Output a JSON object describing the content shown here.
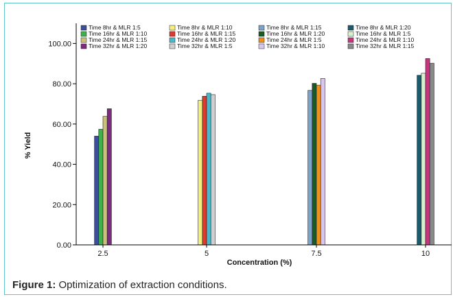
{
  "caption": {
    "label": "Figure 1:",
    "text": " Optimization of extraction conditions."
  },
  "chart_data": {
    "type": "bar",
    "xlabel": "Concentration (%)",
    "ylabel": "% Yield",
    "ylim": [
      0,
      110
    ],
    "yticks": [
      "0.00",
      "20.00",
      "40.00",
      "60.00",
      "80.00",
      "100.00"
    ],
    "categories": [
      "2.5",
      "5",
      "7.5",
      "10"
    ],
    "grid": false,
    "legend_position": "top",
    "series": [
      {
        "name": "Time 8hr & MLR 1:5",
        "color": "#3a4e9c",
        "values": [
          54.0,
          null,
          null,
          null
        ]
      },
      {
        "name": "Time 8hr & MLR 1:10",
        "color": "#f6f07a",
        "values": [
          null,
          71.8,
          null,
          null
        ]
      },
      {
        "name": "Time 8hr & MLR 1:15",
        "color": "#7aa4cc",
        "values": [
          null,
          null,
          76.7,
          null
        ]
      },
      {
        "name": "Time 8hr & MLR 1:20",
        "color": "#1c5b6c",
        "values": [
          null,
          null,
          null,
          84.2
        ]
      },
      {
        "name": "Time 16hr & MLR 1:10",
        "color": "#3fb04f",
        "values": [
          57.4,
          null,
          null,
          null
        ]
      },
      {
        "name": "Time 16hr & MLR 1:15",
        "color": "#e03a2e",
        "values": [
          null,
          73.8,
          null,
          null
        ]
      },
      {
        "name": "Time 16hr & MLR 1:20",
        "color": "#1b5a24",
        "values": [
          null,
          null,
          80.2,
          null
        ]
      },
      {
        "name": "Time 16hr & MLR 1:5",
        "color": "#d7f0d0",
        "values": [
          null,
          null,
          null,
          85.2
        ]
      },
      {
        "name": "Time 24hr & MLR 1:15",
        "color": "#c9c27a",
        "values": [
          63.8,
          null,
          null,
          null
        ]
      },
      {
        "name": "Time 24hr & MLR 1:20",
        "color": "#4bb9c9",
        "values": [
          null,
          75.3,
          null,
          null
        ]
      },
      {
        "name": "Time 24hr & MLR 1:5",
        "color": "#f0901e",
        "values": [
          null,
          null,
          79.3,
          null
        ]
      },
      {
        "name": "Time 24hr & MLR 1:10",
        "color": "#c8357f",
        "values": [
          null,
          null,
          null,
          92.5
        ]
      },
      {
        "name": "Time 32hr & MLR 1:20",
        "color": "#7d2a80",
        "values": [
          67.6,
          null,
          null,
          null
        ]
      },
      {
        "name": "Time 32hr & MLR 1:5",
        "color": "#cfcfcf",
        "values": [
          null,
          74.6,
          null,
          null
        ]
      },
      {
        "name": "Time 32hr & MLR 1:10",
        "color": "#d9c6ec",
        "values": [
          null,
          null,
          82.6,
          null
        ]
      },
      {
        "name": "Time 32hr & MLR 1:15",
        "color": "#8a8a8a",
        "values": [
          null,
          null,
          null,
          90.2
        ]
      }
    ]
  }
}
